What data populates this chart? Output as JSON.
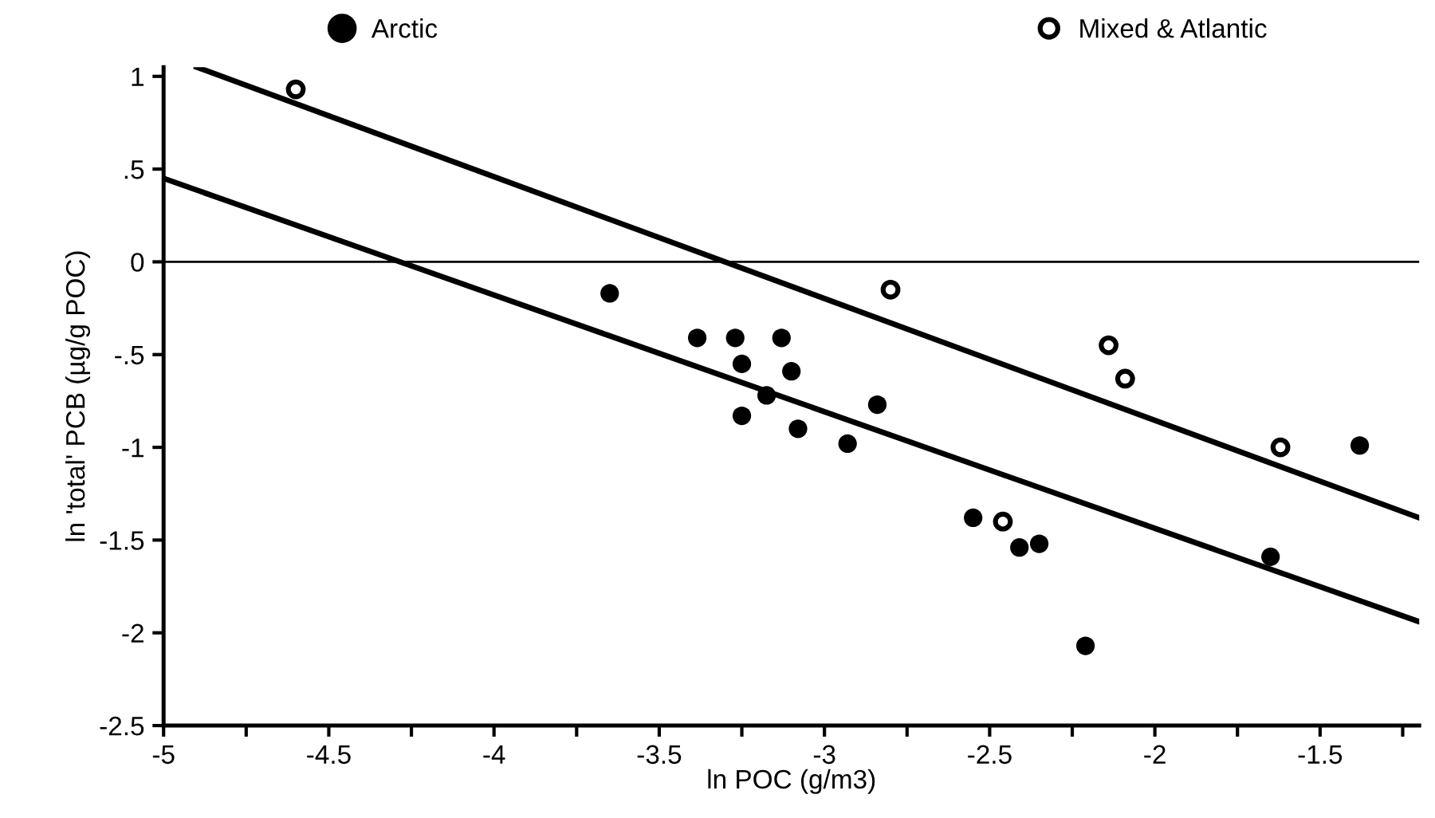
{
  "chart_data": {
    "type": "scatter",
    "xlabel": "ln POC (g/m3)",
    "ylabel": "ln 'total' PCB (µg/g POC)",
    "xlim": [
      -5,
      -1.2
    ],
    "ylim": [
      -2.5,
      1.05
    ],
    "xticks": [
      -5,
      {
        "value": -4.75,
        "label": null
      },
      -4.5,
      {
        "value": -4.25,
        "label": null
      },
      -4,
      {
        "value": -3.75,
        "label": null
      },
      -3.5,
      {
        "value": -3.25,
        "label": null
      },
      -3,
      {
        "value": -2.75,
        "label": null
      },
      -2.5,
      {
        "value": -2.25,
        "label": null
      },
      -2,
      {
        "value": -1.75,
        "label": null
      },
      -1.5,
      {
        "value": -1.25,
        "label": null
      }
    ],
    "yticks": [
      {
        "value": 1,
        "label": "1"
      },
      {
        "value": 0.5,
        "label": ".5"
      },
      {
        "value": 0,
        "label": "0"
      },
      {
        "value": -0.5,
        "label": "-.5"
      },
      {
        "value": -1,
        "label": "-1"
      },
      {
        "value": -1.5,
        "label": "-1.5"
      },
      {
        "value": -2,
        "label": "-2"
      },
      {
        "value": -2.5,
        "label": "-2.5"
      }
    ],
    "legend": "top",
    "grid": false,
    "ref_lines": [
      {
        "axis": "y",
        "value": 0,
        "color": "#000000"
      }
    ],
    "series": [
      {
        "name": "Arctic",
        "color": "#000000",
        "marker": "circle",
        "x": [
          -3.65,
          -3.385,
          -3.27,
          -3.13,
          -3.25,
          -3.1,
          -3.175,
          -3.25,
          -3.08,
          -2.93,
          -2.84,
          -2.55,
          -2.41,
          -2.35,
          -2.21,
          -1.65,
          -1.38
        ],
        "values": [
          -0.17,
          -0.41,
          -0.41,
          -0.41,
          -0.55,
          -0.59,
          -0.72,
          -0.83,
          -0.9,
          -0.98,
          -0.77,
          -1.38,
          -1.54,
          -1.52,
          -2.07,
          -1.59,
          -0.99
        ]
      },
      {
        "name": "Mixed & Atlantic",
        "color": "#ffffff",
        "marker": "circle",
        "x": [
          -4.6,
          -2.8,
          -2.14,
          -2.09,
          -1.62,
          -2.46
        ],
        "values": [
          0.93,
          -0.15,
          -0.45,
          -0.63,
          -1.0,
          -1.4
        ]
      },
      {
        "type": "line",
        "color": "#000000",
        "marker": "none",
        "x": [
          -4.9,
          -1.2
        ],
        "values": [
          1.05,
          -1.38
        ]
      },
      {
        "type": "line",
        "color": "#000000",
        "marker": "none",
        "x": [
          -5,
          -1.2
        ],
        "values": [
          0.45,
          -1.94
        ]
      }
    ]
  }
}
